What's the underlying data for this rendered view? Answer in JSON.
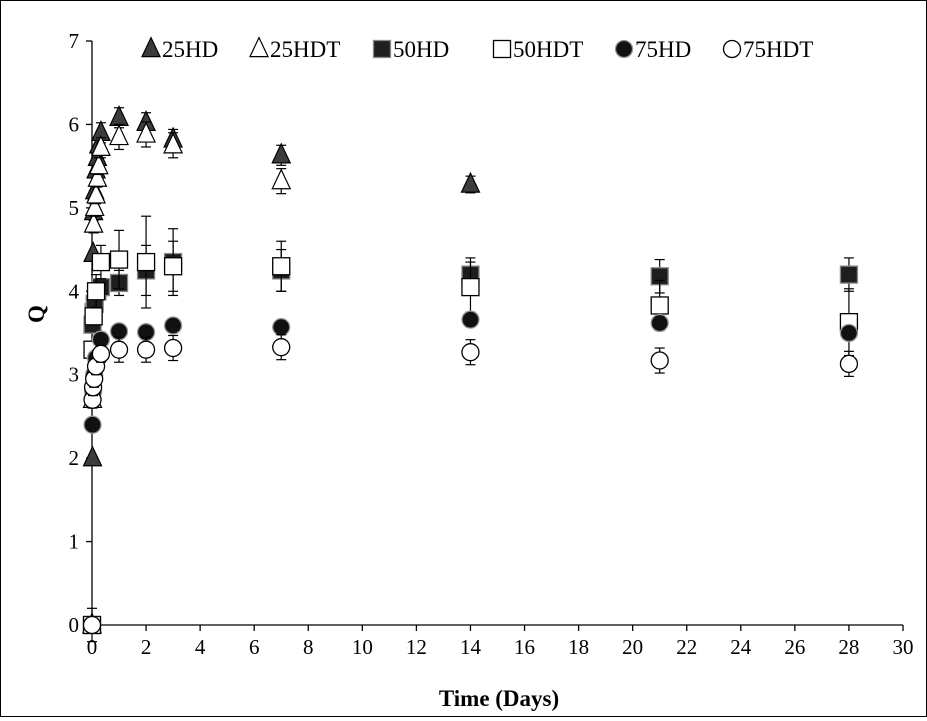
{
  "chart_data": {
    "type": "scatter",
    "title": "",
    "xlabel": "Time (Days)",
    "ylabel": "Q",
    "xlim": [
      0,
      30
    ],
    "ylim": [
      0,
      7
    ],
    "xticks": [
      0,
      2,
      4,
      6,
      8,
      10,
      12,
      14,
      16,
      18,
      20,
      22,
      24,
      26,
      28,
      30
    ],
    "yticks": [
      0,
      1,
      2,
      3,
      4,
      5,
      6,
      7
    ],
    "grid": false,
    "legend_position": "top",
    "error_bars": true,
    "series": [
      {
        "name": "25HD",
        "marker": "triangle",
        "fill": "#3c3c3c",
        "points": [
          {
            "x": 0,
            "y": 0,
            "err": 0.0
          },
          {
            "x": 0.02,
            "y": 2.0,
            "err": 0.0
          },
          {
            "x": 0.04,
            "y": 4.45,
            "err": 0.0
          },
          {
            "x": 0.06,
            "y": 4.95,
            "err": 0.1
          },
          {
            "x": 0.1,
            "y": 5.2,
            "err": 0.1
          },
          {
            "x": 0.15,
            "y": 5.45,
            "err": 0.1
          },
          {
            "x": 0.2,
            "y": 5.6,
            "err": 0.1
          },
          {
            "x": 0.25,
            "y": 5.75,
            "err": 0.1
          },
          {
            "x": 0.33,
            "y": 5.9,
            "err": 0.12
          },
          {
            "x": 1,
            "y": 6.08,
            "err": 0.12
          },
          {
            "x": 2,
            "y": 6.02,
            "err": 0.12
          },
          {
            "x": 3,
            "y": 5.82,
            "err": 0.12
          },
          {
            "x": 7,
            "y": 5.63,
            "err": 0.12
          },
          {
            "x": 14,
            "y": 5.28,
            "err": 0.1
          }
        ]
      },
      {
        "name": "25HDT",
        "marker": "triangle-open",
        "fill": "#ffffff",
        "points": [
          {
            "x": 0,
            "y": 0,
            "err": 0.0
          },
          {
            "x": 0.02,
            "y": 2.7,
            "err": 0.0
          },
          {
            "x": 0.04,
            "y": 3.6,
            "err": 0.0
          },
          {
            "x": 0.06,
            "y": 4.8,
            "err": 0.1
          },
          {
            "x": 0.1,
            "y": 5.0,
            "err": 0.1
          },
          {
            "x": 0.15,
            "y": 5.15,
            "err": 0.1
          },
          {
            "x": 0.2,
            "y": 5.35,
            "err": 0.1
          },
          {
            "x": 0.25,
            "y": 5.5,
            "err": 0.1
          },
          {
            "x": 0.33,
            "y": 5.72,
            "err": 0.12
          },
          {
            "x": 1,
            "y": 5.85,
            "err": 0.15
          },
          {
            "x": 2,
            "y": 5.88,
            "err": 0.15
          },
          {
            "x": 3,
            "y": 5.75,
            "err": 0.15
          },
          {
            "x": 7,
            "y": 5.32,
            "err": 0.15
          }
        ]
      },
      {
        "name": "50HD",
        "marker": "square",
        "fill": "#1e1e1e",
        "points": [
          {
            "x": 0,
            "y": 0,
            "err": 0.0
          },
          {
            "x": 0.02,
            "y": 3.6,
            "err": 0.1
          },
          {
            "x": 0.06,
            "y": 3.75,
            "err": 0.1
          },
          {
            "x": 0.1,
            "y": 3.85,
            "err": 0.1
          },
          {
            "x": 0.2,
            "y": 4.0,
            "err": 0.1
          },
          {
            "x": 0.33,
            "y": 4.05,
            "err": 0.1
          },
          {
            "x": 1,
            "y": 4.1,
            "err": 0.15
          },
          {
            "x": 2,
            "y": 4.25,
            "err": 0.3
          },
          {
            "x": 3,
            "y": 4.35,
            "err": 0.4
          },
          {
            "x": 7,
            "y": 4.25,
            "err": 0.25
          },
          {
            "x": 14,
            "y": 4.2,
            "err": 0.2
          },
          {
            "x": 21,
            "y": 4.18,
            "err": 0.2
          },
          {
            "x": 28,
            "y": 4.2,
            "err": 0.2
          }
        ]
      },
      {
        "name": "50HDT",
        "marker": "square-open",
        "fill": "#ffffff",
        "points": [
          {
            "x": 0,
            "y": 0,
            "err": 0.2
          },
          {
            "x": 0.02,
            "y": 3.3,
            "err": 0.1
          },
          {
            "x": 0.06,
            "y": 3.7,
            "err": 0.1
          },
          {
            "x": 0.15,
            "y": 4.0,
            "err": 0.2
          },
          {
            "x": 0.33,
            "y": 4.35,
            "err": 0.2
          },
          {
            "x": 1,
            "y": 4.38,
            "err": 0.35
          },
          {
            "x": 2,
            "y": 4.35,
            "err": 0.55
          },
          {
            "x": 3,
            "y": 4.3,
            "err": 0.3
          },
          {
            "x": 7,
            "y": 4.3,
            "err": 0.3
          },
          {
            "x": 14,
            "y": 4.05,
            "err": 0.3
          },
          {
            "x": 21,
            "y": 3.83,
            "err": 0.3
          },
          {
            "x": 28,
            "y": 3.63,
            "err": 0.4
          }
        ]
      },
      {
        "name": "75HD",
        "marker": "circle",
        "fill": "#111111",
        "points": [
          {
            "x": 0,
            "y": 0,
            "err": 0.0
          },
          {
            "x": 0.02,
            "y": 2.4,
            "err": 0.0
          },
          {
            "x": 0.04,
            "y": 2.8,
            "err": 0.05
          },
          {
            "x": 0.08,
            "y": 3.0,
            "err": 0.05
          },
          {
            "x": 0.15,
            "y": 3.2,
            "err": 0.05
          },
          {
            "x": 0.33,
            "y": 3.42,
            "err": 0.05
          },
          {
            "x": 1,
            "y": 3.52,
            "err": 0.05
          },
          {
            "x": 2,
            "y": 3.51,
            "err": 0.05
          },
          {
            "x": 3,
            "y": 3.59,
            "err": 0.05
          },
          {
            "x": 7,
            "y": 3.57,
            "err": 0.05
          },
          {
            "x": 14,
            "y": 3.66,
            "err": 0.05
          },
          {
            "x": 21,
            "y": 3.62,
            "err": 0.05
          },
          {
            "x": 28,
            "y": 3.5,
            "err": 0.05
          }
        ]
      },
      {
        "name": "75HDT",
        "marker": "circle-open",
        "fill": "#ffffff",
        "points": [
          {
            "x": 0,
            "y": 0,
            "err": 0.0
          },
          {
            "x": 0.02,
            "y": 2.7,
            "err": 0.1
          },
          {
            "x": 0.04,
            "y": 2.85,
            "err": 0.1
          },
          {
            "x": 0.08,
            "y": 2.95,
            "err": 0.1
          },
          {
            "x": 0.15,
            "y": 3.1,
            "err": 0.1
          },
          {
            "x": 0.33,
            "y": 3.25,
            "err": 0.1
          },
          {
            "x": 1,
            "y": 3.3,
            "err": 0.15
          },
          {
            "x": 2,
            "y": 3.3,
            "err": 0.15
          },
          {
            "x": 3,
            "y": 3.32,
            "err": 0.15
          },
          {
            "x": 7,
            "y": 3.33,
            "err": 0.15
          },
          {
            "x": 14,
            "y": 3.27,
            "err": 0.15
          },
          {
            "x": 21,
            "y": 3.17,
            "err": 0.15
          },
          {
            "x": 28,
            "y": 3.13,
            "err": 0.15
          }
        ]
      }
    ]
  }
}
